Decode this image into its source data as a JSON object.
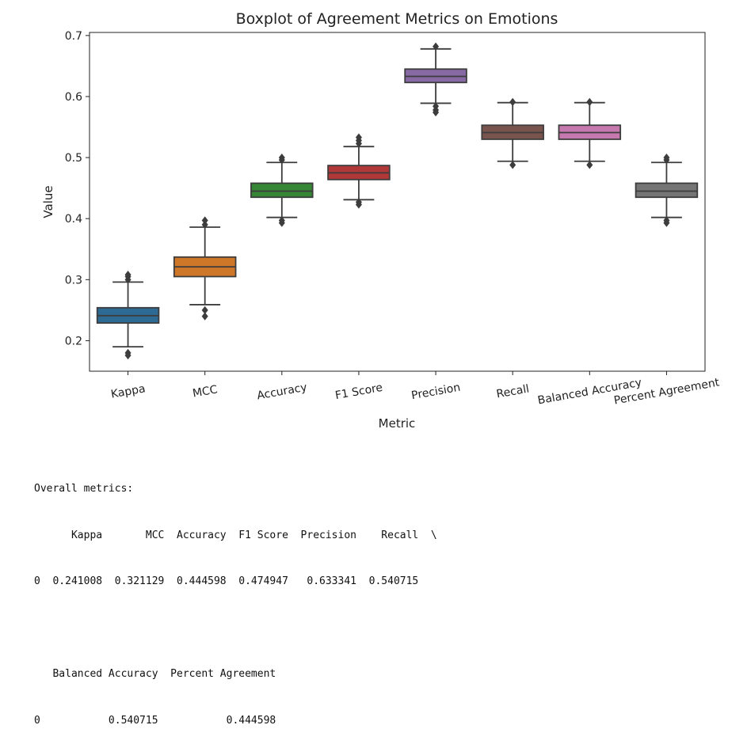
{
  "chart_data": {
    "type": "boxplot",
    "title": "Boxplot of Agreement Metrics on Emotions",
    "xlabel": "Metric",
    "ylabel": "Value",
    "ylim": [
      0.15,
      0.705
    ],
    "yticks": [
      "0.2",
      "0.3",
      "0.4",
      "0.5",
      "0.6",
      "0.7"
    ],
    "grid": false,
    "categories": [
      "Kappa",
      "MCC",
      "Accuracy",
      "F1 Score",
      "Precision",
      "Recall",
      "Balanced Accuracy",
      "Percent Agreement"
    ],
    "colors": [
      "#3274a1",
      "#e1812c",
      "#3a923a",
      "#c03d3e",
      "#9372b2",
      "#845b53",
      "#d684bd",
      "#7f7f7f"
    ],
    "boxes": [
      {
        "whislo": 0.19,
        "q1": 0.229,
        "med": 0.241,
        "q3": 0.254,
        "whishi": 0.296,
        "fliers": [
          0.18,
          0.176,
          0.3,
          0.305,
          0.308
        ]
      },
      {
        "whislo": 0.259,
        "q1": 0.305,
        "med": 0.321,
        "q3": 0.337,
        "whishi": 0.386,
        "fliers": [
          0.25,
          0.24,
          0.39,
          0.397
        ]
      },
      {
        "whislo": 0.402,
        "q1": 0.435,
        "med": 0.445,
        "q3": 0.458,
        "whishi": 0.492,
        "fliers": [
          0.397,
          0.393,
          0.496,
          0.5
        ]
      },
      {
        "whislo": 0.431,
        "q1": 0.464,
        "med": 0.475,
        "q3": 0.487,
        "whishi": 0.518,
        "fliers": [
          0.427,
          0.423,
          0.523,
          0.528,
          0.533
        ]
      },
      {
        "whislo": 0.589,
        "q1": 0.623,
        "med": 0.633,
        "q3": 0.645,
        "whishi": 0.678,
        "fliers": [
          0.584,
          0.578,
          0.574,
          0.682
        ]
      },
      {
        "whislo": 0.494,
        "q1": 0.53,
        "med": 0.541,
        "q3": 0.553,
        "whishi": 0.59,
        "fliers": [
          0.488,
          0.591
        ]
      },
      {
        "whislo": 0.494,
        "q1": 0.53,
        "med": 0.541,
        "q3": 0.553,
        "whishi": 0.59,
        "fliers": [
          0.488,
          0.591
        ]
      },
      {
        "whislo": 0.402,
        "q1": 0.435,
        "med": 0.445,
        "q3": 0.458,
        "whishi": 0.492,
        "fliers": [
          0.397,
          0.393,
          0.496,
          0.5
        ]
      }
    ]
  },
  "output": {
    "lines": [
      "Overall metrics:",
      "      Kappa       MCC  Accuracy  F1 Score  Precision    Recall  \\",
      "0  0.241008  0.321129  0.444598  0.474947   0.633341  0.540715",
      "",
      "   Balanced Accuracy  Percent Agreement",
      "0           0.540715           0.444598"
    ]
  }
}
